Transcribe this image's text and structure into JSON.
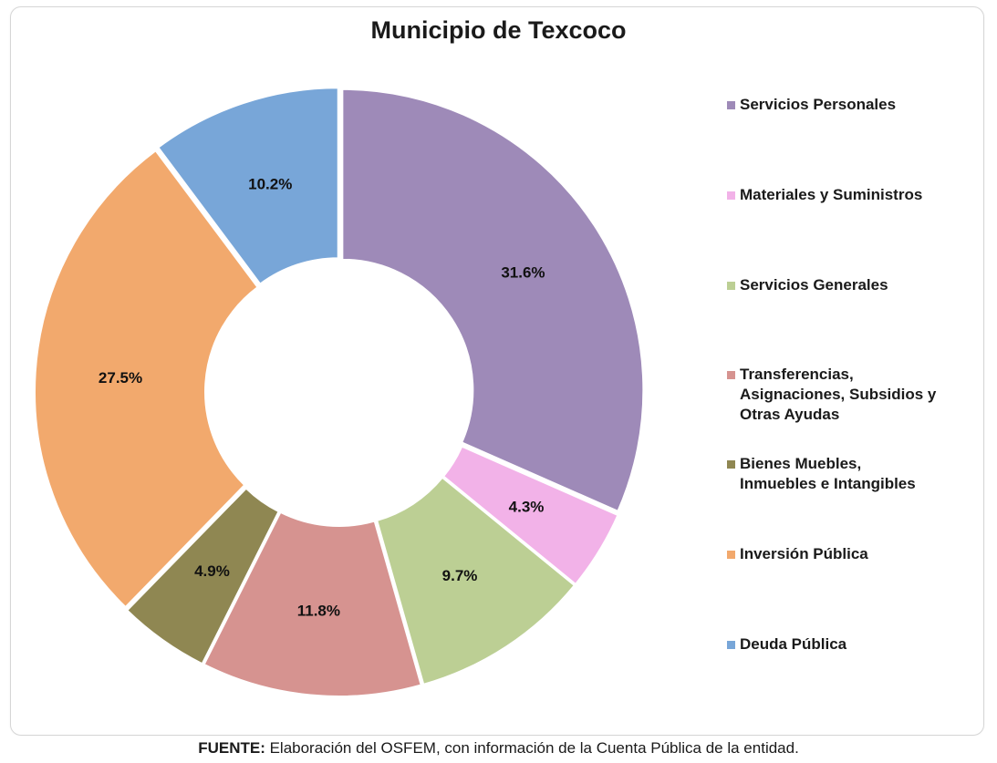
{
  "chart_data": {
    "type": "pie",
    "subtype": "doughnut",
    "title": "Municipio de Texcoco",
    "categories": [
      "Servicios Personales",
      "Materiales y Suministros",
      "Servicios Generales",
      "Transferencias,\nAsignaciones, Subsidios y\nOtras Ayudas",
      "Bienes Muebles,\nInmuebles e Intangibles",
      "Inversión Pública",
      "Deuda Pública"
    ],
    "values": [
      31.6,
      4.3,
      9.7,
      11.8,
      4.9,
      27.5,
      10.2
    ],
    "data_labels": [
      "31.6%",
      "4.3%",
      "9.7%",
      "11.8%",
      "4.9%",
      "27.5%",
      "10.2%"
    ],
    "colors": [
      "#9e8ab8",
      "#f2b2e8",
      "#bccf94",
      "#d69390",
      "#8f8752",
      "#f2a96d",
      "#78a6d8"
    ],
    "legend_position": "right"
  },
  "source": {
    "label": "FUENTE:",
    "text": " Elaboración del OSFEM, con información de la Cuenta Pública de la entidad."
  }
}
